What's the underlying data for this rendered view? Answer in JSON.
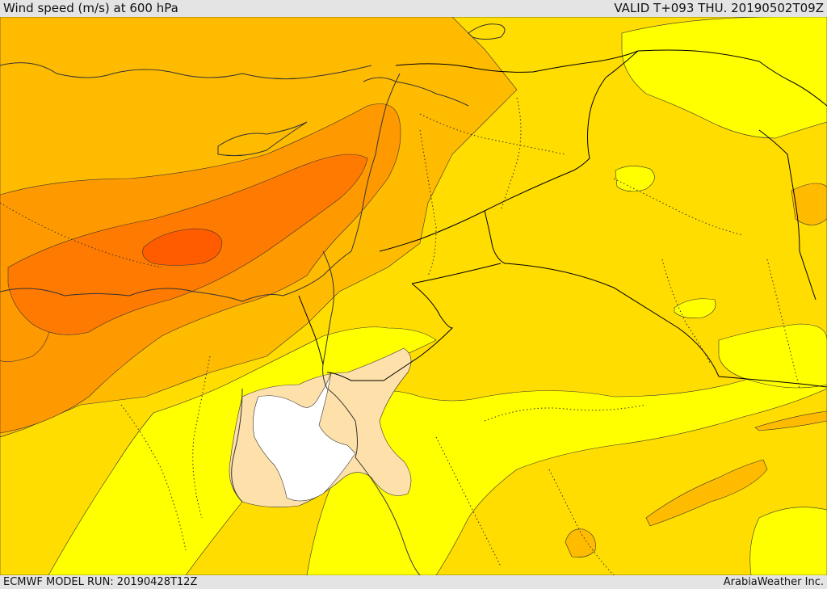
{
  "header": {
    "title": "Wind speed (m/s) at 600 hPa",
    "valid_time": "VALID T+093 THU. 20190502T09Z"
  },
  "footer": {
    "model_run": "ECMWF MODEL RUN: 20190428T12Z",
    "credit": "ArabiaWeather Inc."
  },
  "map": {
    "colors": {
      "lightest_band": "#ffffff",
      "band_1": "#fde0aa",
      "band_2": "#ffff00",
      "band_3": "#ffdd00",
      "band_4": "#ffbb00",
      "band_5": "#ff9900",
      "band_6": "#ff7a00",
      "band_7": "#ff5c00",
      "coastline": "#333333",
      "border": "#000000"
    }
  }
}
